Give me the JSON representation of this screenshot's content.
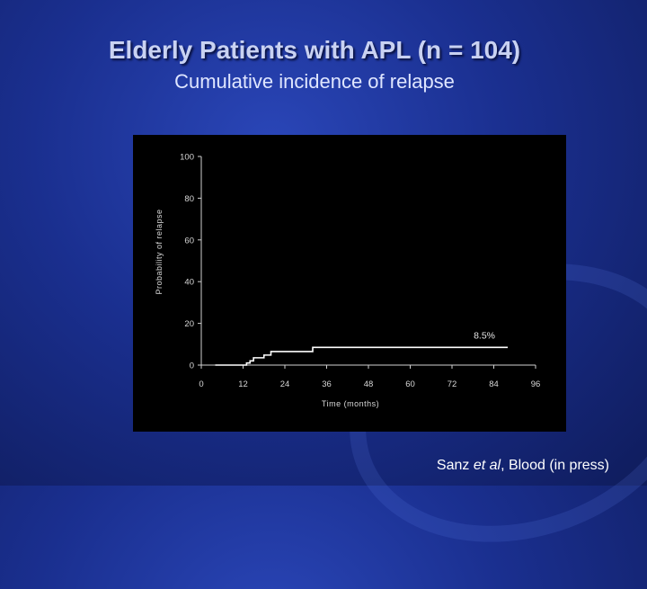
{
  "slide": {
    "title": "Elderly Patients with APL (n = 104)",
    "subtitle": "Cumulative incidence of relapse",
    "citation_author": "Sanz",
    "citation_etal": "et al",
    "citation_rest": ", Blood (in press)"
  },
  "colors": {
    "background": "#1a2f8f",
    "title": "#c9d2f2",
    "chart_background": "#000000",
    "curve": "#ffffff"
  },
  "chart_data": {
    "type": "line",
    "title": "",
    "xlabel": "Time (months)",
    "ylabel": "Probability of relapse",
    "xlim": [
      0,
      96
    ],
    "ylim": [
      0,
      100
    ],
    "x_ticks": [
      0,
      12,
      24,
      36,
      48,
      60,
      72,
      84,
      96
    ],
    "y_ticks": [
      0,
      20,
      40,
      60,
      80,
      100
    ],
    "step": true,
    "series": [
      {
        "name": "",
        "x": [
          4,
          13,
          14,
          15,
          18,
          20,
          32,
          88
        ],
        "y": [
          0,
          1,
          2,
          3.5,
          4.8,
          6.5,
          8.5,
          8.5
        ]
      }
    ],
    "annotation": "8.5%"
  }
}
